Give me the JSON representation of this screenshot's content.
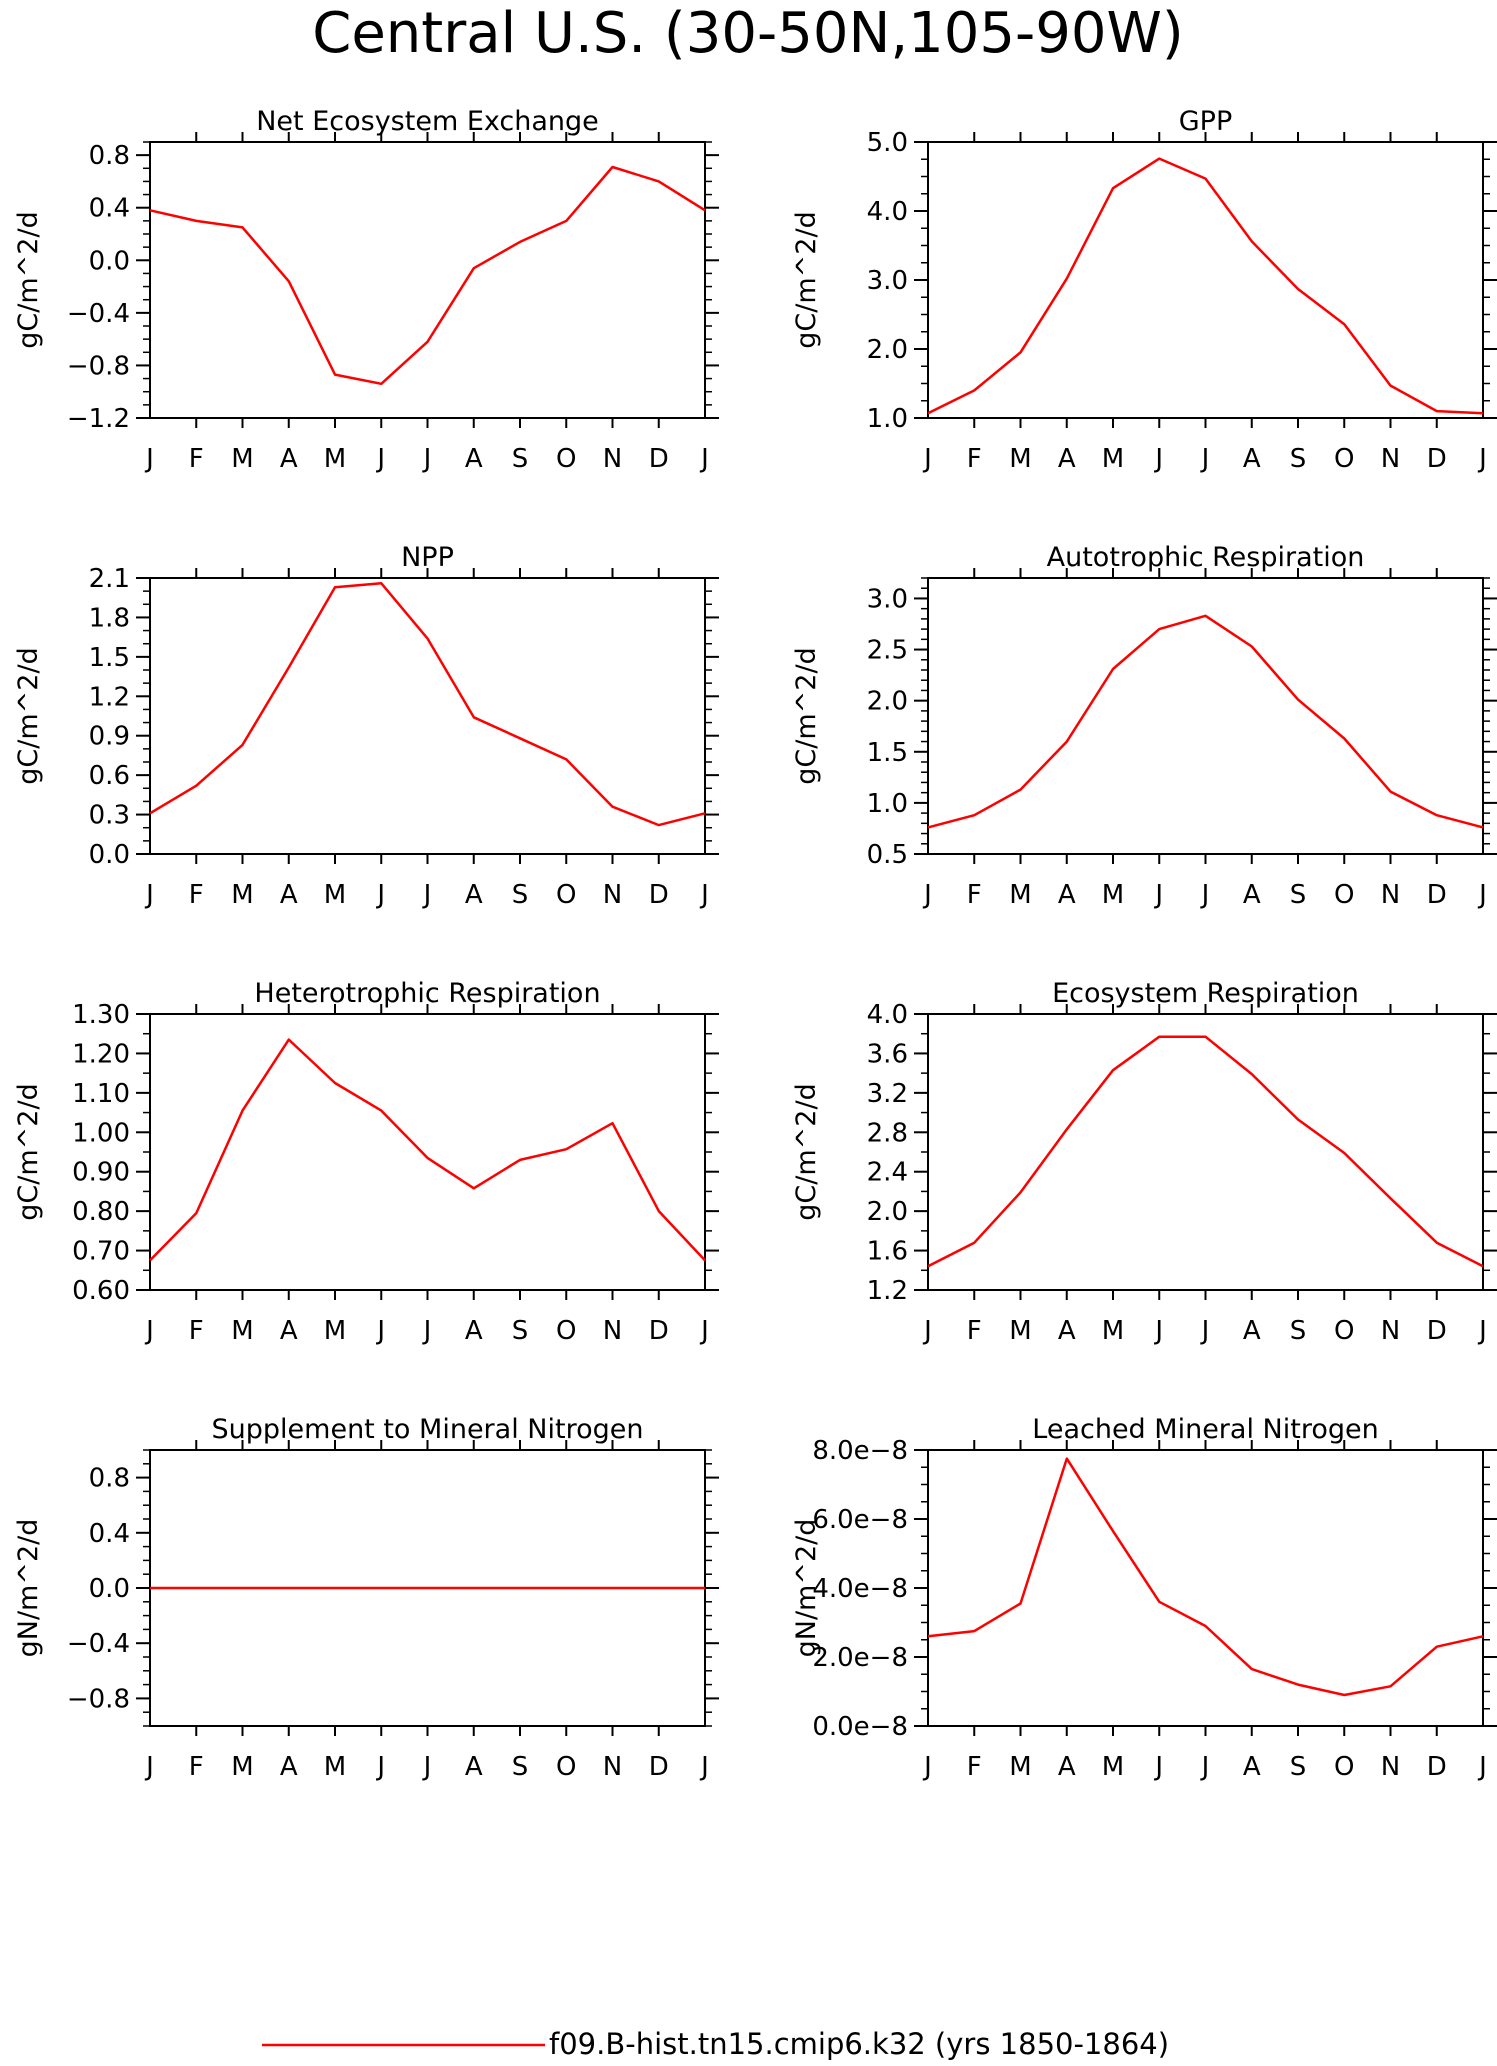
{
  "page": {
    "title": "Central U.S. (30-50N,105-90W)",
    "legend_label": "f09.B-hist.tn15.cmip6.k32 (yrs 1850-1864)",
    "line_color": "#ff0000"
  },
  "chart_data": [
    {
      "type": "line",
      "title": "Net Ecosystem Exchange",
      "ylabel": "gC/m^2/d",
      "ylim": [
        -1.2,
        0.9
      ],
      "ytick_values": [
        -1.2,
        -0.8,
        -0.4,
        0.0,
        0.4,
        0.8
      ],
      "ytick_labels": [
        "−1.2",
        "−0.8",
        "−0.4",
        "0.0",
        "0.4",
        "0.8"
      ],
      "minor_tick_step": 0.1,
      "categories": [
        "J",
        "F",
        "M",
        "A",
        "M",
        "J",
        "J",
        "A",
        "S",
        "O",
        "N",
        "D",
        "J"
      ],
      "series": [
        {
          "values": [
            0.38,
            0.3,
            0.25,
            -0.16,
            -0.87,
            -0.94,
            -0.62,
            -0.06,
            0.14,
            0.3,
            0.71,
            0.6,
            0.38
          ]
        }
      ]
    },
    {
      "type": "line",
      "title": "GPP",
      "ylabel": "gC/m^2/d",
      "ylim": [
        1.0,
        5.0
      ],
      "ytick_values": [
        1.0,
        2.0,
        3.0,
        4.0,
        5.0
      ],
      "ytick_labels": [
        "1.0",
        "2.0",
        "3.0",
        "4.0",
        "5.0"
      ],
      "minor_tick_step": 0.25,
      "categories": [
        "J",
        "F",
        "M",
        "A",
        "M",
        "J",
        "J",
        "A",
        "S",
        "O",
        "N",
        "D",
        "J"
      ],
      "series": [
        {
          "values": [
            1.07,
            1.4,
            1.95,
            3.02,
            4.33,
            4.76,
            4.47,
            3.56,
            2.87,
            2.36,
            1.47,
            1.1,
            1.07
          ]
        }
      ]
    },
    {
      "type": "line",
      "title": "NPP",
      "ylabel": "gC/m^2/d",
      "ylim": [
        0.0,
        2.1
      ],
      "ytick_values": [
        0.0,
        0.3,
        0.6,
        0.9,
        1.2,
        1.5,
        1.8,
        2.1
      ],
      "ytick_labels": [
        "0.0",
        "0.3",
        "0.6",
        "0.9",
        "1.2",
        "1.5",
        "1.8",
        "2.1"
      ],
      "minor_tick_step": 0.1,
      "categories": [
        "J",
        "F",
        "M",
        "A",
        "M",
        "J",
        "J",
        "A",
        "S",
        "O",
        "N",
        "D",
        "J"
      ],
      "series": [
        {
          "values": [
            0.31,
            0.52,
            0.83,
            1.42,
            2.03,
            2.06,
            1.64,
            1.04,
            0.88,
            0.72,
            0.36,
            0.22,
            0.31
          ]
        }
      ]
    },
    {
      "type": "line",
      "title": "Autotrophic Respiration",
      "ylabel": "gC/m^2/d",
      "ylim": [
        0.5,
        3.2
      ],
      "ytick_values": [
        0.5,
        1.0,
        1.5,
        2.0,
        2.5,
        3.0
      ],
      "ytick_labels": [
        "0.5",
        "1.0",
        "1.5",
        "2.0",
        "2.5",
        "3.0"
      ],
      "minor_tick_step": 0.1,
      "categories": [
        "J",
        "F",
        "M",
        "A",
        "M",
        "J",
        "J",
        "A",
        "S",
        "O",
        "N",
        "D",
        "J"
      ],
      "series": [
        {
          "values": [
            0.76,
            0.88,
            1.13,
            1.6,
            2.31,
            2.7,
            2.83,
            2.53,
            2.01,
            1.63,
            1.11,
            0.88,
            0.76
          ]
        }
      ]
    },
    {
      "type": "line",
      "title": "Heterotrophic Respiration",
      "ylabel": "gC/m^2/d",
      "ylim": [
        0.6,
        1.3
      ],
      "ytick_values": [
        0.6,
        0.7,
        0.8,
        0.9,
        1.0,
        1.1,
        1.2,
        1.3
      ],
      "ytick_labels": [
        "0.60",
        "0.70",
        "0.80",
        "0.90",
        "1.00",
        "1.10",
        "1.20",
        "1.30"
      ],
      "minor_tick_step": 0.05,
      "categories": [
        "J",
        "F",
        "M",
        "A",
        "M",
        "J",
        "J",
        "A",
        "S",
        "O",
        "N",
        "D",
        "J"
      ],
      "series": [
        {
          "values": [
            0.675,
            0.795,
            1.055,
            1.235,
            1.125,
            1.055,
            0.935,
            0.858,
            0.93,
            0.957,
            1.023,
            0.8,
            0.675
          ]
        }
      ]
    },
    {
      "type": "line",
      "title": "Ecosystem Respiration",
      "ylabel": "gC/m^2/d",
      "ylim": [
        1.2,
        4.0
      ],
      "ytick_values": [
        1.2,
        1.6,
        2.0,
        2.4,
        2.8,
        3.2,
        3.6,
        4.0
      ],
      "ytick_labels": [
        "1.2",
        "1.6",
        "2.0",
        "2.4",
        "2.8",
        "3.2",
        "3.6",
        "4.0"
      ],
      "minor_tick_step": 0.2,
      "categories": [
        "J",
        "F",
        "M",
        "A",
        "M",
        "J",
        "J",
        "A",
        "S",
        "O",
        "N",
        "D",
        "J"
      ],
      "series": [
        {
          "values": [
            1.44,
            1.68,
            2.19,
            2.83,
            3.43,
            3.77,
            3.77,
            3.39,
            2.93,
            2.59,
            2.13,
            1.68,
            1.44
          ]
        }
      ]
    },
    {
      "type": "line",
      "title": "Supplement to Mineral Nitrogen",
      "ylabel": "gN/m^2/d",
      "ylim": [
        -1.0,
        1.0
      ],
      "ytick_values": [
        -0.8,
        -0.4,
        0.0,
        0.4,
        0.8
      ],
      "ytick_labels": [
        "−0.8",
        "−0.4",
        "0.0",
        "0.4",
        "0.8"
      ],
      "minor_tick_step": 0.1,
      "categories": [
        "J",
        "F",
        "M",
        "A",
        "M",
        "J",
        "J",
        "A",
        "S",
        "O",
        "N",
        "D",
        "J"
      ],
      "series": [
        {
          "values": [
            0,
            0,
            0,
            0,
            0,
            0,
            0,
            0,
            0,
            0,
            0,
            0,
            0
          ]
        }
      ]
    },
    {
      "type": "line",
      "title": "Leached Mineral Nitrogen",
      "ylabel": "gN/m^2/d",
      "ylim": [
        0.0,
        8e-08
      ],
      "ytick_values": [
        0.0,
        2e-08,
        4e-08,
        6e-08,
        8e-08
      ],
      "ytick_labels": [
        "0.0e−8",
        "2.0e−8",
        "4.0e−8",
        "6.0e−8",
        "8.0e−8"
      ],
      "minor_tick_step": 5e-09,
      "categories": [
        "J",
        "F",
        "M",
        "A",
        "M",
        "J",
        "J",
        "A",
        "S",
        "O",
        "N",
        "D",
        "J"
      ],
      "series": [
        {
          "values": [
            2.6e-08,
            2.75e-08,
            3.55e-08,
            7.75e-08,
            5.65e-08,
            3.6e-08,
            2.9e-08,
            1.65e-08,
            1.2e-08,
            9e-09,
            1.15e-08,
            2.3e-08,
            2.6e-08
          ]
        }
      ]
    }
  ]
}
